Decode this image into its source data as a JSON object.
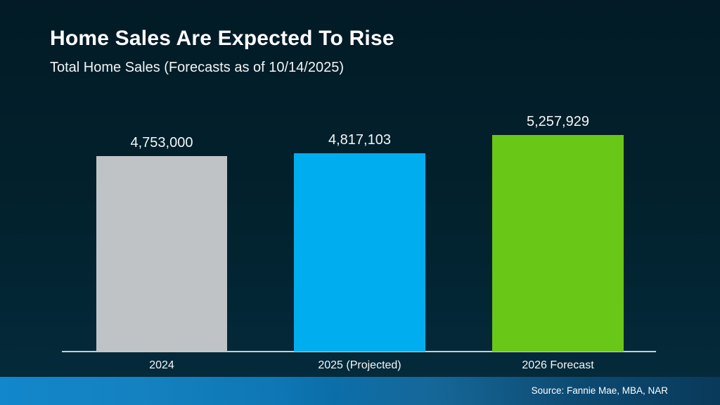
{
  "header": {
    "title": "Home Sales Are Expected To Rise",
    "subtitle": "Total Home Sales (Forecasts as of 10/14/2025)"
  },
  "chart_data": {
    "type": "bar",
    "title": "Home Sales Are Expected To Rise",
    "subtitle": "Total Home Sales (Forecasts as of 10/14/2025)",
    "categories": [
      "2024",
      "2025 (Projected)",
      "2026 Forecast"
    ],
    "values": [
      4753000,
      4817103,
      5257929
    ],
    "value_labels": [
      "4,753,000",
      "4,817,103",
      "5,257,929"
    ],
    "bar_colors": [
      "#c0c3c5",
      "#00aeef",
      "#69c717"
    ],
    "ylim": [
      0,
      5257929
    ],
    "grid": false,
    "legend": false,
    "baseline_color": "#c9ced1"
  },
  "footer": {
    "source": "Source: Fannie Mae, MBA, NAR"
  },
  "colors": {
    "background_top": "#021b26",
    "background_bottom": "#042a3b",
    "footer_band_left": "#0581c8",
    "footer_band_right": "#0a3c5f",
    "text": "#ffffff"
  }
}
